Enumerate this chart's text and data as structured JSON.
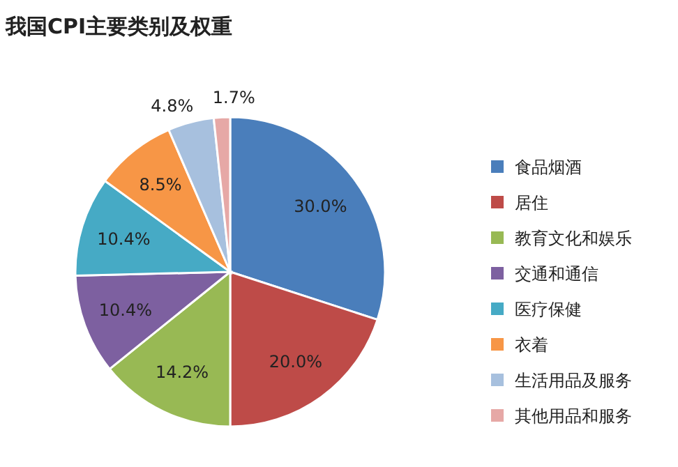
{
  "chart_data": {
    "type": "pie",
    "title": "我国CPI主要类别及权重",
    "categories": [
      "食品烟酒",
      "居住",
      "教育文化和娱乐",
      "交通和通信",
      "医疗保健",
      "衣着",
      "生活用品及服务",
      "其他用品和服务"
    ],
    "values": [
      30.0,
      20.0,
      14.2,
      10.4,
      10.4,
      8.5,
      4.8,
      1.7
    ],
    "value_labels": [
      "30.0%",
      "20.0%",
      "14.2%",
      "10.4%",
      "10.4%",
      "8.5%",
      "4.8%",
      "1.7%"
    ],
    "colors": [
      "#4a7ebb",
      "#be4b48",
      "#98b954",
      "#7d60a0",
      "#46aac5",
      "#f79646",
      "#a7c0de",
      "#e6a8a6"
    ],
    "legend": "right"
  }
}
